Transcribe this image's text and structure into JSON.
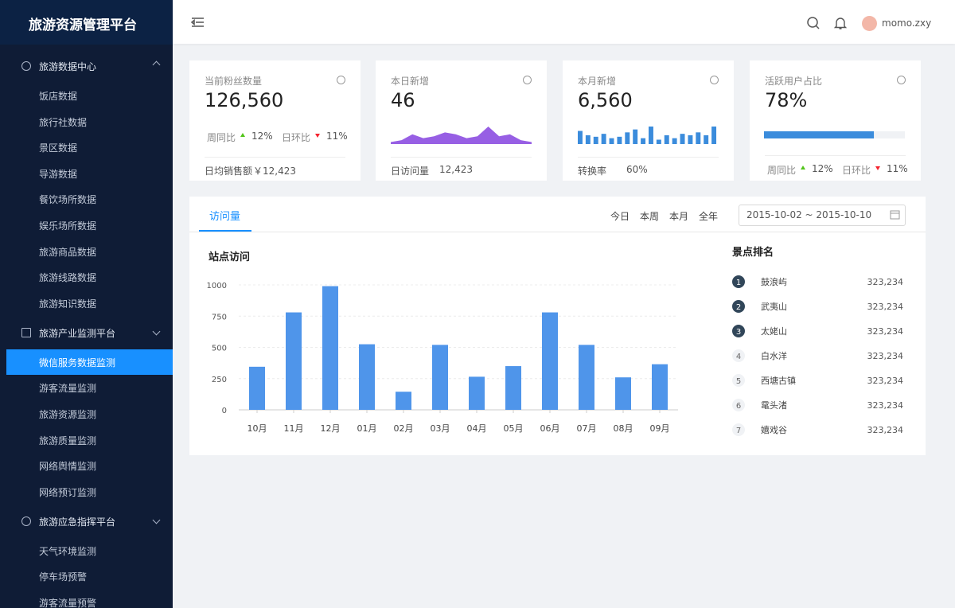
{
  "app_title": "旅游资源管理平台",
  "menu": [
    {
      "label": "旅游数据中心",
      "items": [
        "饭店数据",
        "旅行社数据",
        "景区数据",
        "导游数据",
        "餐饮场所数据",
        "娱乐场所数据",
        "旅游商品数据",
        "旅游线路数据",
        "旅游知识数据"
      ]
    },
    {
      "label": "旅游产业监测平台",
      "items": [
        "微信服务数据监测",
        "游客流量监测",
        "旅游资源监测",
        "旅游质量监测",
        "网络舆情监测",
        "网络预订监测"
      ]
    },
    {
      "label": "旅游应急指挥平台",
      "items": [
        "天气环境监测",
        "停车场预警",
        "游客流量预警"
      ]
    }
  ],
  "header": {
    "user": "momo.zxy"
  },
  "cards": [
    {
      "title": "当前粉丝数量",
      "value": "126,560",
      "stats": [
        {
          "label": "周同比",
          "value": "12%"
        },
        {
          "label": "日环比",
          "value": "11%"
        }
      ],
      "footer": {
        "label": "日均销售额",
        "value": "￥12,423"
      }
    },
    {
      "title": "本日新增",
      "value": "46",
      "area": [
        1,
        2,
        5,
        3,
        4,
        6,
        5,
        3,
        4,
        9,
        4,
        5,
        2,
        1
      ],
      "footer": {
        "label": "日访问量",
        "value": "12,423"
      }
    },
    {
      "title": "本月新增",
      "value": "6,560",
      "bars": [
        9,
        6,
        5,
        7,
        4,
        5,
        8,
        10,
        4,
        12,
        3,
        6,
        4,
        7,
        6,
        8,
        6,
        12
      ],
      "footer": {
        "label": "转换率",
        "value": "60%"
      }
    },
    {
      "title": "活跃用户占比",
      "value": "78%",
      "progress": 78,
      "stats": [
        {
          "label": "周同比",
          "value": "12%"
        },
        {
          "label": "日环比",
          "value": "11%"
        }
      ]
    }
  ],
  "tab": "访问量",
  "ranges": [
    "今日",
    "本周",
    "本月",
    "全年"
  ],
  "date_range": "2015-10-02 ~ 2015-10-10",
  "chart_data": {
    "type": "bar",
    "title": "站点访问",
    "categories": [
      "10月",
      "11月",
      "12月",
      "01月",
      "02月",
      "03月",
      "04月",
      "05月",
      "06月",
      "07月",
      "08月",
      "09月"
    ],
    "values": [
      345,
      780,
      990,
      525,
      145,
      520,
      265,
      350,
      780,
      520,
      260,
      365
    ],
    "color": "#4f95ea",
    "ylim": [
      0,
      1000
    ],
    "yticks": [
      0,
      250,
      500,
      750,
      1000
    ],
    "grid": true
  },
  "ranking": {
    "title": "景点排名",
    "items": [
      {
        "rank": 1,
        "name": "鼓浪屿",
        "value": "323,234"
      },
      {
        "rank": 2,
        "name": "武夷山",
        "value": "323,234"
      },
      {
        "rank": 3,
        "name": "太姥山",
        "value": "323,234"
      },
      {
        "rank": 4,
        "name": "白水洋",
        "value": "323,234"
      },
      {
        "rank": 5,
        "name": "西塘古镇",
        "value": "323,234"
      },
      {
        "rank": 6,
        "name": "鼋头渚",
        "value": "323,234"
      },
      {
        "rank": 7,
        "name": "嬉戏谷",
        "value": "323,234"
      }
    ]
  }
}
